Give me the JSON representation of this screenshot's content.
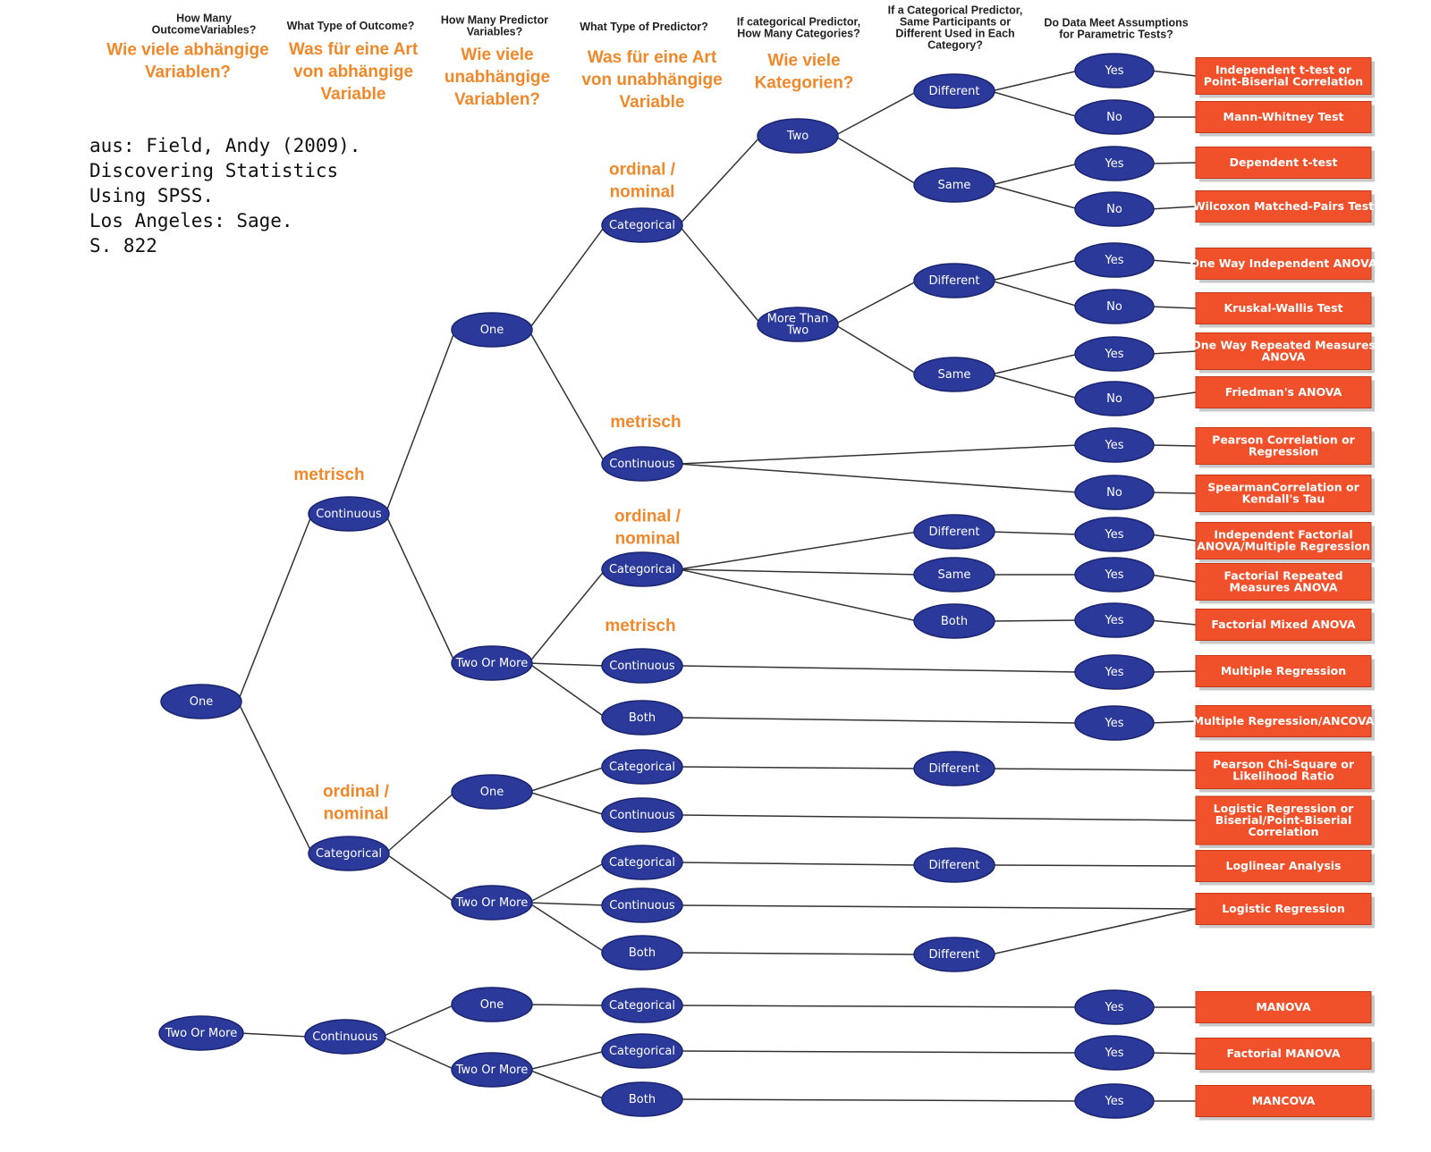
{
  "headers": [
    {
      "lines": [
        "How Many",
        "OutcomeVariables?"
      ]
    },
    {
      "lines": [
        "What Type of Outcome?"
      ]
    },
    {
      "lines": [
        "How Many Predictor",
        "Variables?"
      ]
    },
    {
      "lines": [
        "What Type of Predictor?"
      ]
    },
    {
      "lines": [
        "If categorical Predictor,",
        "How Many Categories?"
      ]
    },
    {
      "lines": [
        "If a Categorical Predictor,",
        "Same Participants or",
        "Different Used in Each",
        "Category?"
      ]
    },
    {
      "lines": [
        "Do Data Meet Assumptions",
        "for Parametric Tests?"
      ]
    }
  ],
  "german_headers": [
    {
      "lines": [
        "Wie viele abhängige",
        "Variablen?"
      ]
    },
    {
      "lines": [
        "Was für eine Art",
        "von abhängige",
        "Variable"
      ]
    },
    {
      "lines": [
        "Wie viele",
        "unabhängige",
        "Variablen?"
      ]
    },
    {
      "lines": [
        "Was für eine Art",
        "von unabhängige",
        "Variable"
      ]
    },
    {
      "lines": [
        "Wie viele",
        "Kategorien?"
      ]
    }
  ],
  "citation": [
    "aus: Field, Andy (2009).",
    "Discovering Statistics",
    "Using SPSS.",
    "Los Angeles: Sage.",
    "S. 822"
  ],
  "annotations": [
    {
      "lines": [
        "ordinal /",
        "nominal"
      ]
    },
    {
      "lines": [
        "metrisch"
      ]
    },
    {
      "lines": [
        "metrisch"
      ]
    },
    {
      "lines": [
        "ordinal /",
        "nominal"
      ]
    },
    {
      "lines": [
        "metrisch"
      ]
    },
    {
      "lines": [
        "ordinal /",
        "nominal"
      ]
    }
  ],
  "nodes": [
    {
      "id": "n_one",
      "label": [
        "One"
      ]
    },
    {
      "id": "n_two_more",
      "label": [
        "Two Or More"
      ]
    },
    {
      "id": "n_cont",
      "label": [
        "Continuous"
      ]
    },
    {
      "id": "n_cat",
      "label": [
        "Categorical"
      ]
    },
    {
      "id": "n_cont_b",
      "label": [
        "Continuous"
      ]
    },
    {
      "id": "p_one_a",
      "label": [
        "One"
      ]
    },
    {
      "id": "p_two_a",
      "label": [
        "Two Or More"
      ]
    },
    {
      "id": "p_one_b",
      "label": [
        "One"
      ]
    },
    {
      "id": "p_two_b",
      "label": [
        "Two Or More"
      ]
    },
    {
      "id": "p_one_c",
      "label": [
        "One"
      ]
    },
    {
      "id": "p_two_c",
      "label": [
        "Two Or More"
      ]
    },
    {
      "id": "t_cat1",
      "label": [
        "Categorical"
      ]
    },
    {
      "id": "t_cont1",
      "label": [
        "Continuous"
      ]
    },
    {
      "id": "t_cat2",
      "label": [
        "Categorical"
      ]
    },
    {
      "id": "t_cont2",
      "label": [
        "Continuous"
      ]
    },
    {
      "id": "t_both2",
      "label": [
        "Both"
      ]
    },
    {
      "id": "t_cat3",
      "label": [
        "Categorical"
      ]
    },
    {
      "id": "t_cont3",
      "label": [
        "Continuous"
      ]
    },
    {
      "id": "t_cat4",
      "label": [
        "Categorical"
      ]
    },
    {
      "id": "t_cont4",
      "label": [
        "Continuous"
      ]
    },
    {
      "id": "t_both4",
      "label": [
        "Both"
      ]
    },
    {
      "id": "t_cat5",
      "label": [
        "Categorical"
      ]
    },
    {
      "id": "t_cat6",
      "label": [
        "Categorical"
      ]
    },
    {
      "id": "t_both6",
      "label": [
        "Both"
      ]
    },
    {
      "id": "k_two",
      "label": [
        "Two"
      ]
    },
    {
      "id": "k_more",
      "label": [
        "More Than",
        "Two"
      ]
    },
    {
      "id": "s_diff1",
      "label": [
        "Different"
      ]
    },
    {
      "id": "s_same1",
      "label": [
        "Same"
      ]
    },
    {
      "id": "s_diff2",
      "label": [
        "Different"
      ]
    },
    {
      "id": "s_same2",
      "label": [
        "Same"
      ]
    },
    {
      "id": "s_diff3",
      "label": [
        "Different"
      ]
    },
    {
      "id": "s_same3",
      "label": [
        "Same"
      ]
    },
    {
      "id": "s_both3",
      "label": [
        "Both"
      ]
    },
    {
      "id": "s_diff4",
      "label": [
        "Different"
      ]
    },
    {
      "id": "s_diff5",
      "label": [
        "Different"
      ]
    },
    {
      "id": "s_diff6",
      "label": [
        "Different"
      ]
    },
    {
      "id": "a1",
      "label": [
        "Yes"
      ]
    },
    {
      "id": "a2",
      "label": [
        "No"
      ]
    },
    {
      "id": "a3",
      "label": [
        "Yes"
      ]
    },
    {
      "id": "a4",
      "label": [
        "No"
      ]
    },
    {
      "id": "a5",
      "label": [
        "Yes"
      ]
    },
    {
      "id": "a6",
      "label": [
        "No"
      ]
    },
    {
      "id": "a7",
      "label": [
        "Yes"
      ]
    },
    {
      "id": "a8",
      "label": [
        "No"
      ]
    },
    {
      "id": "a9",
      "label": [
        "Yes"
      ]
    },
    {
      "id": "a10",
      "label": [
        "No"
      ]
    },
    {
      "id": "a11",
      "label": [
        "Yes"
      ]
    },
    {
      "id": "a12",
      "label": [
        "Yes"
      ]
    },
    {
      "id": "a13",
      "label": [
        "Yes"
      ]
    },
    {
      "id": "a14",
      "label": [
        "Yes"
      ]
    },
    {
      "id": "a15",
      "label": [
        "Yes"
      ]
    },
    {
      "id": "a16",
      "label": [
        "Yes"
      ]
    },
    {
      "id": "a17",
      "label": [
        "Yes"
      ]
    },
    {
      "id": "a18",
      "label": [
        "Yes"
      ]
    }
  ],
  "results": [
    {
      "id": "r1",
      "label": [
        "Independent t-test or",
        "Point-Biserial Correlation"
      ]
    },
    {
      "id": "r2",
      "label": [
        "Mann-Whitney Test"
      ]
    },
    {
      "id": "r3",
      "label": [
        "Dependent t-test"
      ]
    },
    {
      "id": "r4",
      "label": [
        "Wilcoxon Matched-Pairs Test"
      ]
    },
    {
      "id": "r5",
      "label": [
        "One Way Independent ANOVA"
      ]
    },
    {
      "id": "r6",
      "label": [
        "Kruskal-Wallis Test"
      ]
    },
    {
      "id": "r7",
      "label": [
        "One Way Repeated Measures",
        "ANOVA"
      ]
    },
    {
      "id": "r8",
      "label": [
        "Friedman's ANOVA"
      ]
    },
    {
      "id": "r9",
      "label": [
        "Pearson Correlation or",
        "Regression"
      ]
    },
    {
      "id": "r10",
      "label": [
        "SpearmanCorrelation or",
        "Kendall's Tau"
      ]
    },
    {
      "id": "r11",
      "label": [
        "Independent Factorial",
        "ANOVA/Multiple Regression"
      ]
    },
    {
      "id": "r12",
      "label": [
        "Factorial Repeated",
        "Measures ANOVA"
      ]
    },
    {
      "id": "r13",
      "label": [
        "Factorial Mixed ANOVA"
      ]
    },
    {
      "id": "r14",
      "label": [
        "Multiple Regression"
      ]
    },
    {
      "id": "r15",
      "label": [
        "Multiple Regression/ANCOVA"
      ]
    },
    {
      "id": "r16",
      "label": [
        "Pearson Chi-Square or",
        "Likelihood Ratio"
      ]
    },
    {
      "id": "r17",
      "label": [
        "Logistic Regression or",
        "Biserial/Point-Biserial",
        "Correlation"
      ]
    },
    {
      "id": "r18",
      "label": [
        "Loglinear Analysis"
      ]
    },
    {
      "id": "r19",
      "label": [
        "Logistic Regression"
      ]
    },
    {
      "id": "r20",
      "label": [
        "MANOVA"
      ]
    },
    {
      "id": "r21",
      "label": [
        "Factorial MANOVA"
      ]
    },
    {
      "id": "r22",
      "label": [
        "MANCOVA"
      ]
    }
  ],
  "edges": [
    [
      "n_one",
      "n_cont"
    ],
    [
      "n_one",
      "n_cat"
    ],
    [
      "n_cont",
      "p_one_a"
    ],
    [
      "n_cont",
      "p_two_a"
    ],
    [
      "n_cat",
      "p_one_b"
    ],
    [
      "n_cat",
      "p_two_b"
    ],
    [
      "n_two_more",
      "n_cont_b"
    ],
    [
      "n_cont_b",
      "p_one_c"
    ],
    [
      "n_cont_b",
      "p_two_c"
    ],
    [
      "p_one_a",
      "t_cat1"
    ],
    [
      "p_one_a",
      "t_cont1"
    ],
    [
      "p_two_a",
      "t_cat2"
    ],
    [
      "p_two_a",
      "t_cont2"
    ],
    [
      "p_two_a",
      "t_both2"
    ],
    [
      "p_one_b",
      "t_cat3"
    ],
    [
      "p_one_b",
      "t_cont3"
    ],
    [
      "p_two_b",
      "t_cat4"
    ],
    [
      "p_two_b",
      "t_cont4"
    ],
    [
      "p_two_b",
      "t_both4"
    ],
    [
      "p_one_c",
      "t_cat5"
    ],
    [
      "p_two_c",
      "t_cat6"
    ],
    [
      "p_two_c",
      "t_both6"
    ],
    [
      "t_cat1",
      "k_two"
    ],
    [
      "t_cat1",
      "k_more"
    ],
    [
      "k_two",
      "s_diff1"
    ],
    [
      "k_two",
      "s_same1"
    ],
    [
      "k_more",
      "s_diff2"
    ],
    [
      "k_more",
      "s_same2"
    ],
    [
      "s_diff1",
      "a1"
    ],
    [
      "s_diff1",
      "a2"
    ],
    [
      "s_same1",
      "a3"
    ],
    [
      "s_same1",
      "a4"
    ],
    [
      "s_diff2",
      "a5"
    ],
    [
      "s_diff2",
      "a6"
    ],
    [
      "s_same2",
      "a7"
    ],
    [
      "s_same2",
      "a8"
    ],
    [
      "t_cont1",
      "a9"
    ],
    [
      "t_cont1",
      "a10"
    ],
    [
      "t_cat2",
      "s_diff3"
    ],
    [
      "t_cat2",
      "s_same3"
    ],
    [
      "t_cat2",
      "s_both3"
    ],
    [
      "s_diff3",
      "a11"
    ],
    [
      "s_same3",
      "a12"
    ],
    [
      "s_both3",
      "a13"
    ],
    [
      "t_cont2",
      "a14"
    ],
    [
      "t_both2",
      "a15"
    ],
    [
      "t_cat3",
      "s_diff4"
    ],
    [
      "s_diff4",
      "r16"
    ],
    [
      "t_cont3",
      "r17"
    ],
    [
      "t_cat4",
      "s_diff5"
    ],
    [
      "s_diff5",
      "r18"
    ],
    [
      "t_cont4",
      "r19"
    ],
    [
      "t_both4",
      "s_diff6"
    ],
    [
      "s_diff6",
      "r19"
    ],
    [
      "t_cat5",
      "a16"
    ],
    [
      "t_cat6",
      "a17"
    ],
    [
      "t_both6",
      "a18"
    ],
    [
      "a1",
      "r1"
    ],
    [
      "a2",
      "r2"
    ],
    [
      "a3",
      "r3"
    ],
    [
      "a4",
      "r4"
    ],
    [
      "a5",
      "r5"
    ],
    [
      "a6",
      "r6"
    ],
    [
      "a7",
      "r7"
    ],
    [
      "a8",
      "r8"
    ],
    [
      "a9",
      "r9"
    ],
    [
      "a10",
      "r10"
    ],
    [
      "a11",
      "r11"
    ],
    [
      "a12",
      "r12"
    ],
    [
      "a13",
      "r13"
    ],
    [
      "a14",
      "r14"
    ],
    [
      "a15",
      "r15"
    ],
    [
      "a16",
      "r20"
    ],
    [
      "a17",
      "r21"
    ],
    [
      "a18",
      "r22"
    ]
  ]
}
